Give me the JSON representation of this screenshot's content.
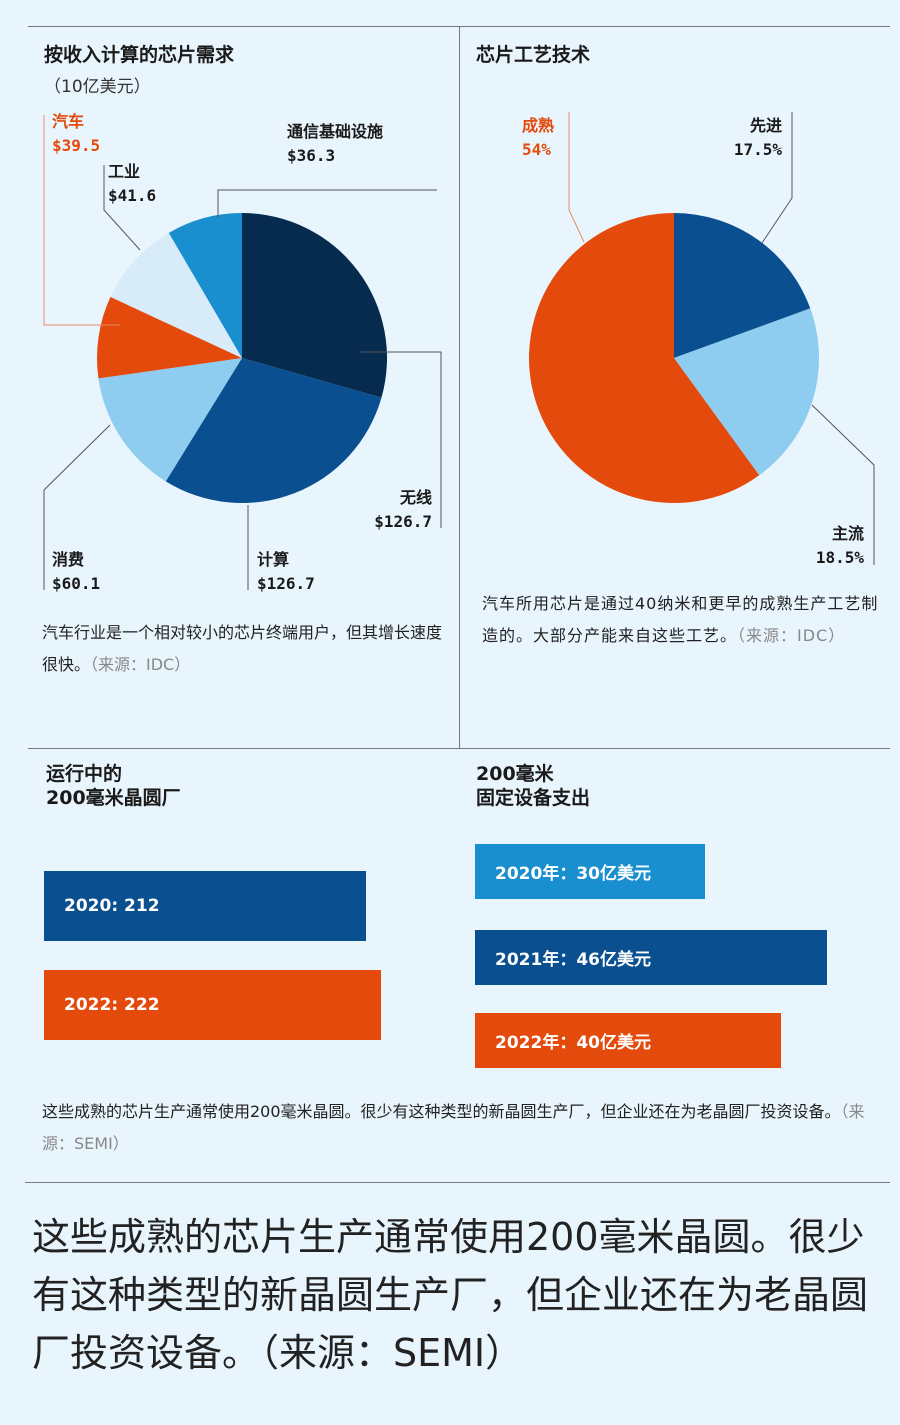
{
  "colors": {
    "navy": "#062b4f",
    "blue": "#0a4f8f",
    "mid": "#1a8fd0",
    "light": "#8ecdf0",
    "pale": "#d8ebf8",
    "orange": "#e44a0b"
  },
  "chart_data": [
    {
      "type": "pie",
      "title": "按收入计算的芯片需求",
      "subtitle": "（10亿美元）",
      "slices": [
        {
          "name": "无线",
          "value": 126.7,
          "label": "$126.7",
          "color": "#062b4f"
        },
        {
          "name": "计算",
          "value": 126.7,
          "label": "$126.7",
          "color": "#0a4f8f"
        },
        {
          "name": "消费",
          "value": 60.1,
          "label": "$60.1",
          "color": "#8ecdf0"
        },
        {
          "name": "汽车",
          "value": 39.5,
          "label": "$39.5",
          "color": "#e44a0b"
        },
        {
          "name": "工业",
          "value": 41.6,
          "label": "$41.6",
          "color": "#d8ebf8"
        },
        {
          "name": "通信基础设施",
          "value": 36.3,
          "label": "$36.3",
          "color": "#1a8fd0"
        }
      ],
      "caption": "汽车行业是一个相对较小的芯片终端用户，但其增长速度很快。",
      "source": "（来源：IDC）"
    },
    {
      "type": "pie",
      "title": "芯片工艺技术",
      "slices": [
        {
          "name": "先进",
          "value": 17.5,
          "label": "17.5%",
          "color": "#0a4f8f"
        },
        {
          "name": "主流",
          "value": 18.5,
          "label": "18.5%",
          "color": "#8ecdf0"
        },
        {
          "name": "成熟",
          "value": 54,
          "label": "54%",
          "color": "#e44a0b"
        }
      ],
      "caption": "汽车所用芯片是通过40纳米和更早的成熟生产工艺制造的。大部分产能来自这些工艺。",
      "source": "（来源：IDC）"
    },
    {
      "type": "bar",
      "title": "运行中的 200毫米晶圆厂",
      "title_lines": [
        "运行中的",
        "200毫米晶圆厂"
      ],
      "categories": [
        "2020",
        "2022"
      ],
      "values": [
        212,
        222
      ],
      "labels": [
        "2020: 212",
        "2022: 222"
      ],
      "colors": [
        "#0a4f8f",
        "#e44a0b"
      ]
    },
    {
      "type": "bar",
      "title_lines": [
        "200毫米",
        "固定设备支出"
      ],
      "categories": [
        "2020",
        "2021",
        "2022"
      ],
      "values": [
        30,
        46,
        40
      ],
      "unit": "亿美元",
      "labels": [
        "2020年：30亿美元",
        "2021年：46亿美元",
        "2022年：40亿美元"
      ],
      "colors": [
        "#1a8fd0",
        "#0a4f8f",
        "#e44a0b"
      ]
    }
  ],
  "bottom_caption": "这些成熟的芯片生产通常使用200毫米晶圆。很少有这种类型的新晶圆生产厂，但企业还在为老晶圆厂投资设备。",
  "bottom_source": "（来源：SEMI）",
  "big_text": "这些成熟的芯片生产通常使用200毫米晶圆。很少有这种类型的新晶圆生产厂，但企业还在为老晶圆厂投资设备。（来源：SEMI）"
}
